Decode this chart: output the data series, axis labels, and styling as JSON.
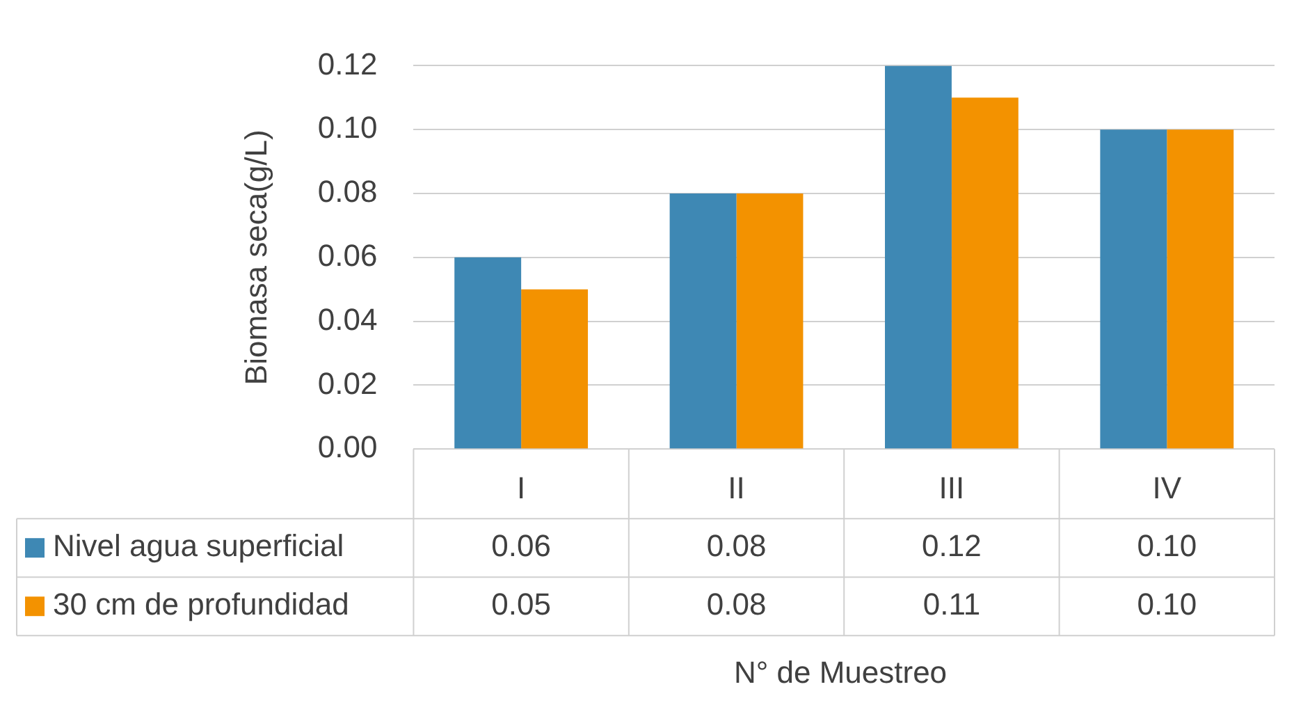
{
  "chart_data": {
    "type": "bar",
    "ylabel": "Biomasa seca(g/L)",
    "xlabel": "N° de Muestreo",
    "categories": [
      "I",
      "II",
      "III",
      "IV"
    ],
    "series": [
      {
        "name": "Nivel agua superficial",
        "color": "#3e88b4",
        "values": [
          0.06,
          0.08,
          0.12,
          0.1
        ],
        "value_labels": [
          "0.06",
          "0.08",
          "0.12",
          "0.10"
        ]
      },
      {
        "name": "30 cm de profundidad",
        "color": "#f39200",
        "values": [
          0.05,
          0.08,
          0.11,
          0.1
        ],
        "value_labels": [
          "0.05",
          "0.08",
          "0.11",
          "0.10"
        ]
      }
    ],
    "ylim": [
      0,
      0.12
    ],
    "yticks": [
      {
        "value": 0,
        "label": "0.00"
      },
      {
        "value": 0.02,
        "label": "0.02"
      },
      {
        "value": 0.04,
        "label": "0.04"
      },
      {
        "value": 0.06,
        "label": "0.06"
      },
      {
        "value": 0.08,
        "label": "0.08"
      },
      {
        "value": 0.1,
        "label": "0.10"
      },
      {
        "value": 0.12,
        "label": "0.12"
      }
    ],
    "grid": "y",
    "legend": "bottom"
  }
}
